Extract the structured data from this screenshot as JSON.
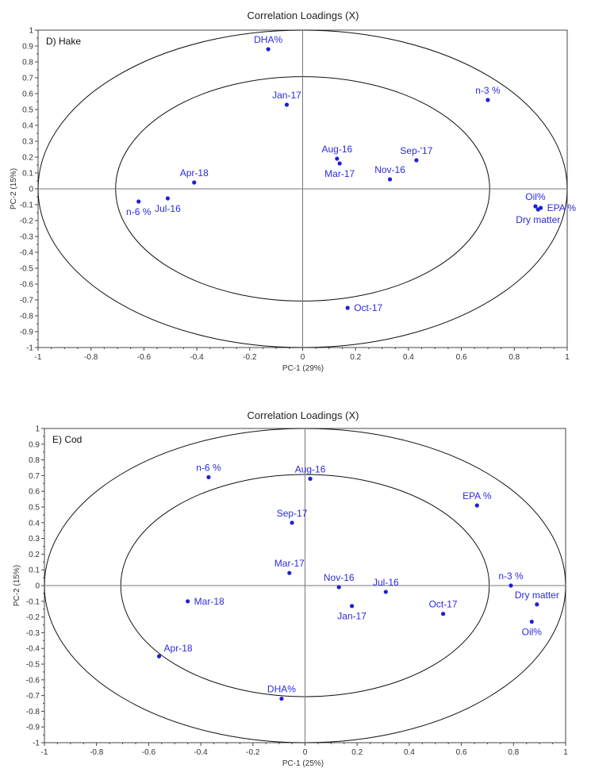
{
  "chart_data": [
    {
      "type": "scatter",
      "title": "Correlation Loadings (X)",
      "panel_label": "D) Hake",
      "xlabel": "PC-1 (29%)",
      "ylabel": "PC-2 (15%)",
      "xlim": [
        -1,
        1
      ],
      "ylim": [
        -1,
        1
      ],
      "x_ticks": [
        "-1",
        "-0.8",
        "-0.6",
        "-0.4",
        "-0.2",
        "0",
        "0.2",
        "0.4",
        "0.6",
        "0.8",
        "1"
      ],
      "y_ticks": [
        "1",
        "0.9",
        "0.8",
        "0.7",
        "0.6",
        "0.5",
        "0.4",
        "0.3",
        "0.2",
        "0.1",
        "0",
        "-0.1",
        "-0.2",
        "-0.3",
        "-0.4",
        "-0.5",
        "-0.6",
        "-0.7",
        "-0.8",
        "-0.9",
        "-1"
      ],
      "ellipses": [
        1.0,
        0.707
      ],
      "points": [
        {
          "label": "DHA%",
          "x": -0.13,
          "y": 0.88,
          "pos": "above"
        },
        {
          "label": "Jan-17",
          "x": -0.06,
          "y": 0.53,
          "pos": "above"
        },
        {
          "label": "n-3 %",
          "x": 0.7,
          "y": 0.56,
          "pos": "above"
        },
        {
          "label": "Aug-16",
          "x": 0.13,
          "y": 0.19,
          "pos": "above"
        },
        {
          "label": "Mar-17",
          "x": 0.14,
          "y": 0.16,
          "pos": "below"
        },
        {
          "label": "Sep-'17",
          "x": 0.43,
          "y": 0.18,
          "pos": "above"
        },
        {
          "label": "Nov-16",
          "x": 0.33,
          "y": 0.06,
          "pos": "above"
        },
        {
          "label": "Apr-18",
          "x": -0.41,
          "y": 0.04,
          "pos": "above"
        },
        {
          "label": "n-6 %",
          "x": -0.62,
          "y": -0.08,
          "pos": "below"
        },
        {
          "label": "Jul-16",
          "x": -0.51,
          "y": -0.06,
          "pos": "below"
        },
        {
          "label": "Oil%",
          "x": 0.88,
          "y": -0.11,
          "pos": "above"
        },
        {
          "label": "EPA %",
          "x": 0.9,
          "y": -0.12,
          "pos": "right"
        },
        {
          "label": "Dry matter",
          "x": 0.89,
          "y": -0.13,
          "pos": "below"
        },
        {
          "label": "Oct-17",
          "x": 0.17,
          "y": -0.75,
          "pos": "right"
        }
      ]
    },
    {
      "type": "scatter",
      "title": "Correlation Loadings (X)",
      "panel_label": "E) Cod",
      "xlabel": "PC-1 (25%)",
      "ylabel": "PC-2 (15%)",
      "xlim": [
        -1,
        1
      ],
      "ylim": [
        -1,
        1
      ],
      "x_ticks": [
        "-1",
        "-0.8",
        "-0.6",
        "-0.4",
        "-0.2",
        "0",
        "0.2",
        "0.4",
        "0.6",
        "0.8",
        "1"
      ],
      "y_ticks": [
        "1",
        "0.9",
        "0.8",
        "0.7",
        "0.6",
        "0.5",
        "0.4",
        "0.3",
        "0.2",
        "0.1",
        "0",
        "-0.1",
        "-0.2",
        "-0.3",
        "-0.4",
        "-0.5",
        "-0.6",
        "-0.7",
        "-0.8",
        "-0.9",
        "-1"
      ],
      "ellipses": [
        1.0,
        0.707
      ],
      "points": [
        {
          "label": "n-6 %",
          "x": -0.37,
          "y": 0.69,
          "pos": "above"
        },
        {
          "label": "Aug-16",
          "x": 0.02,
          "y": 0.68,
          "pos": "above"
        },
        {
          "label": "EPA %",
          "x": 0.66,
          "y": 0.51,
          "pos": "above"
        },
        {
          "label": "Sep-17",
          "x": -0.05,
          "y": 0.4,
          "pos": "above"
        },
        {
          "label": "Mar-17",
          "x": -0.06,
          "y": 0.08,
          "pos": "above"
        },
        {
          "label": "Nov-16",
          "x": 0.13,
          "y": -0.01,
          "pos": "above"
        },
        {
          "label": "Jul-16",
          "x": 0.31,
          "y": -0.04,
          "pos": "above"
        },
        {
          "label": "Jan-17",
          "x": 0.18,
          "y": -0.13,
          "pos": "below"
        },
        {
          "label": "Oct-17",
          "x": 0.53,
          "y": -0.18,
          "pos": "above"
        },
        {
          "label": "n-3 %",
          "x": 0.79,
          "y": 0.0,
          "pos": "above"
        },
        {
          "label": "Dry matter",
          "x": 0.89,
          "y": -0.12,
          "pos": "above"
        },
        {
          "label": "Oil%",
          "x": 0.87,
          "y": -0.23,
          "pos": "below"
        },
        {
          "label": "Mar-18",
          "x": -0.45,
          "y": -0.1,
          "pos": "right"
        },
        {
          "label": "Apr-18",
          "x": -0.56,
          "y": -0.45,
          "pos": "aboveright"
        },
        {
          "label": "DHA%",
          "x": -0.09,
          "y": -0.72,
          "pos": "above"
        }
      ]
    }
  ]
}
